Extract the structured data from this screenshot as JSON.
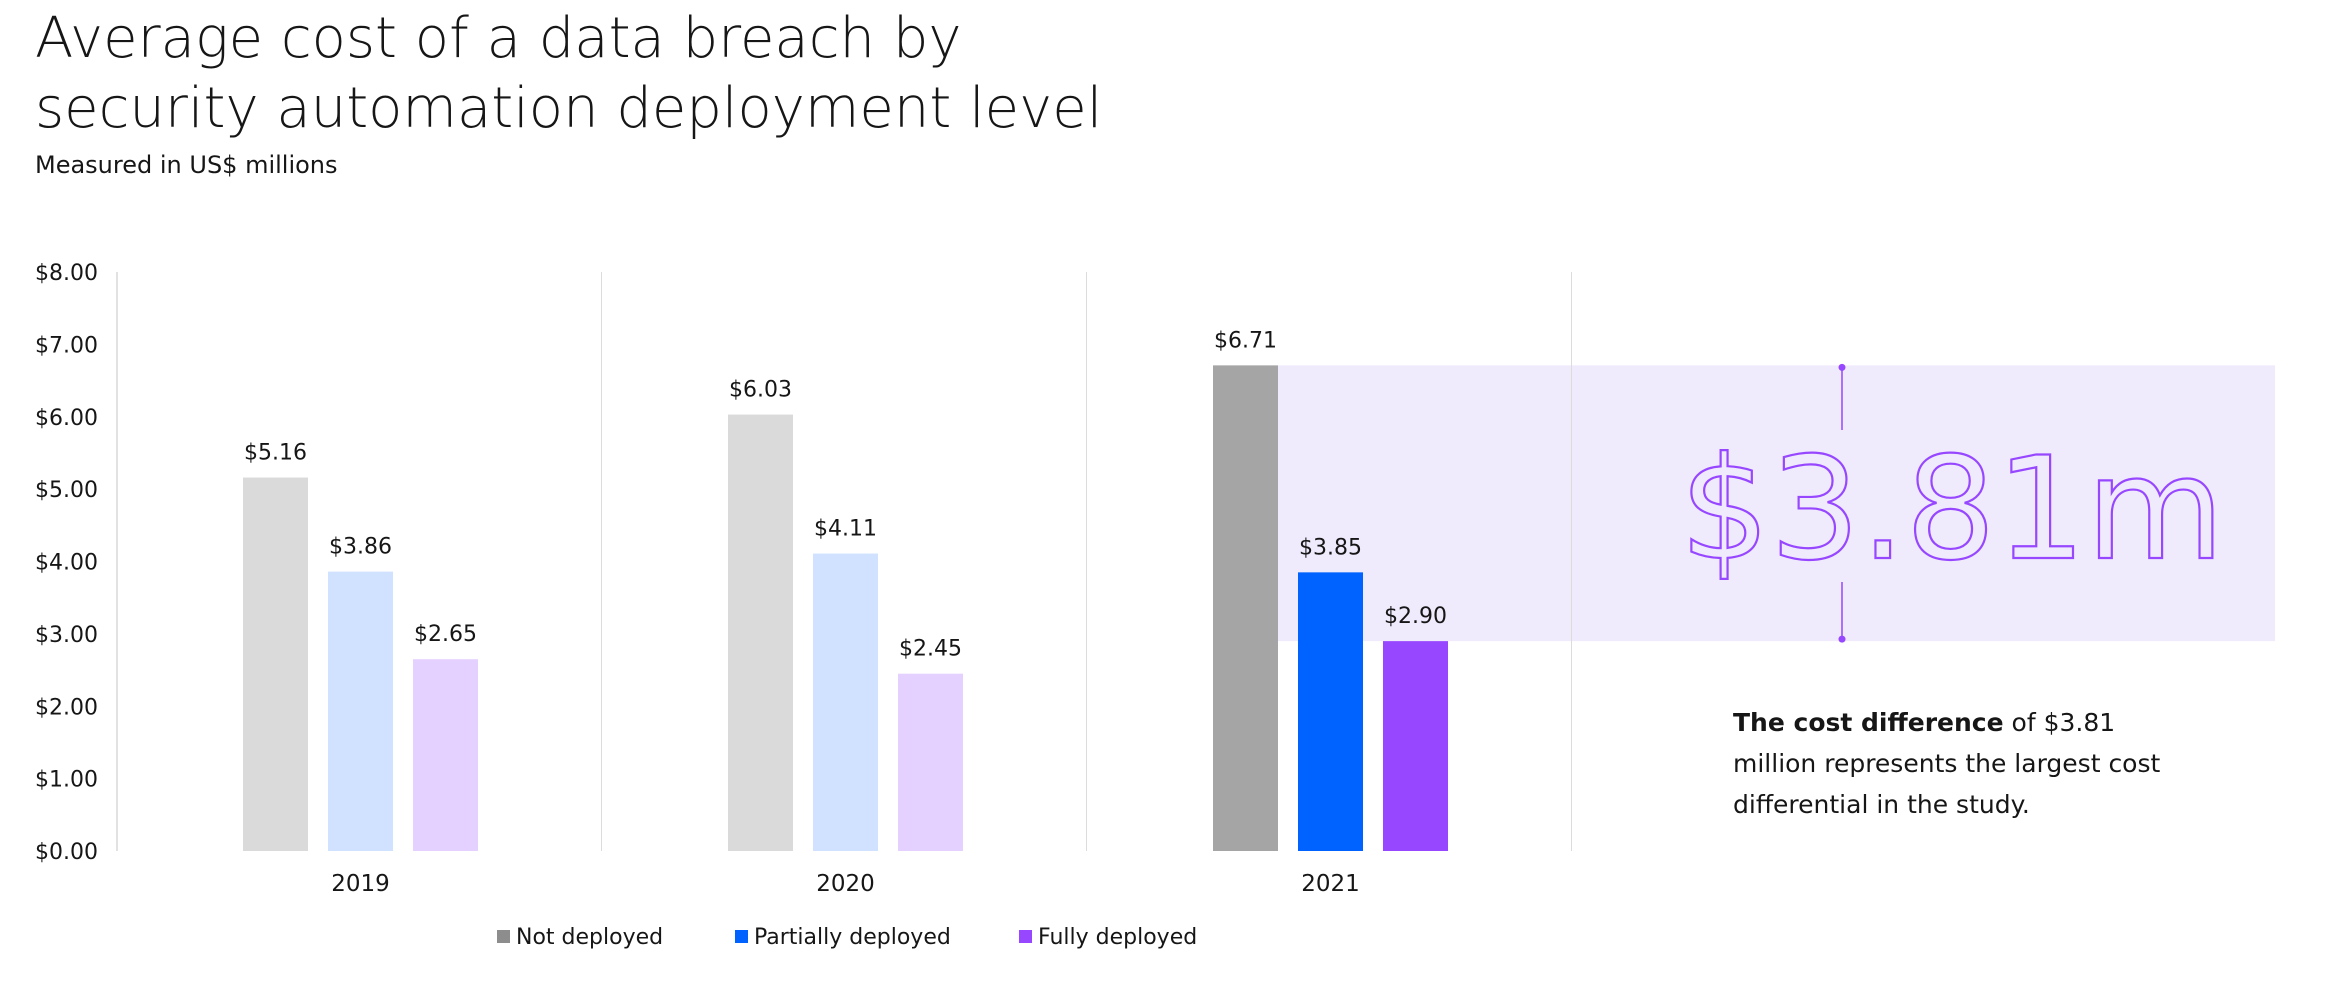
{
  "header": {
    "title_line1": "Average cost of a data breach by",
    "title_line2": "security automation deployment level",
    "subtitle": "Measured in US$ millions"
  },
  "chart_data": {
    "type": "bar",
    "categories": [
      "2019",
      "2020",
      "2021"
    ],
    "series": [
      {
        "name": "Not deployed",
        "values": [
          5.16,
          6.03,
          6.71
        ],
        "labels": [
          "$5.16",
          "$6.03",
          "$6.71"
        ]
      },
      {
        "name": "Partially deployed",
        "values": [
          3.86,
          4.11,
          3.85
        ],
        "labels": [
          "$3.86",
          "$4.11",
          "$3.85"
        ]
      },
      {
        "name": "Fully deployed",
        "values": [
          2.65,
          2.45,
          2.9
        ],
        "labels": [
          "$2.65",
          "$2.45",
          "$2.90"
        ]
      }
    ],
    "ylim": [
      0,
      8
    ],
    "yticks": [
      0,
      1,
      2,
      3,
      4,
      5,
      6,
      7,
      8
    ],
    "ytick_labels": [
      "$0.00",
      "$1.00",
      "$2.00",
      "$3.00",
      "$4.00",
      "$5.00",
      "$6.00",
      "$7.00",
      "$8.00"
    ],
    "colors": {
      "highlight": [
        "#a5a5a5",
        "#0062ff",
        "#9747ff"
      ],
      "muted": [
        "#dadada",
        "#d0e2ff",
        "#e4d1ff"
      ]
    },
    "highlight_category": "2021",
    "legend_colors": [
      "#8d8d8d",
      "#0062ff",
      "#9747ff"
    ],
    "legend_position": "bottom",
    "annotation": {
      "value_text": "$3.81m",
      "from": 2.9,
      "to": 6.71,
      "band_color": "#efeafc",
      "accent_color": "#9747ff"
    }
  },
  "callout": {
    "bold": "The cost difference",
    "text": " of $3.81 million represents the largest cost differential in the study."
  }
}
